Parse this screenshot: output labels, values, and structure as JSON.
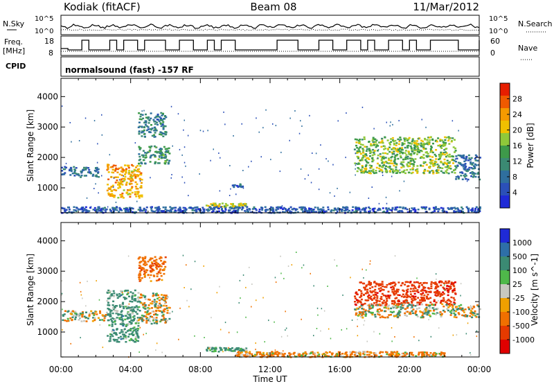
{
  "header": {
    "station": "Kodiak (fitACF)",
    "beam": "Beam 08",
    "date": "11/Mar/2012"
  },
  "aux_panels": {
    "nsky_label": "N.Sky",
    "nsearch_label": "N.Search",
    "freq_label_line1": "Freq.",
    "freq_label_line2": "[MHz]",
    "nave_label": "Nave",
    "cpid_label": "CPID",
    "cpid_text": "normalsound (fast) -157 RF",
    "noise_left_ticks": [
      "10^5",
      "10^0"
    ],
    "noise_right_ticks": [
      "10^5",
      "10^0"
    ],
    "freq_ticks": [
      "18",
      "8"
    ],
    "nave_ticks": [
      "60",
      "0"
    ]
  },
  "colors": {
    "power_scale": [
      "#1f2ad6",
      "#2b50b8",
      "#2f6f9e",
      "#3b8a73",
      "#3e9a4a",
      "#8fc83a",
      "#f0c000",
      "#f59a00",
      "#ef5a00",
      "#e61e00"
    ],
    "velocity_scale": [
      "#1f2ad6",
      "#2e6fa8",
      "#3b8a73",
      "#4fb84a",
      "#c8c8c0",
      "#f0a000",
      "#f07000",
      "#e63a00",
      "#e00000"
    ]
  },
  "chart_data": [
    {
      "type": "heatmap",
      "name": "power",
      "xlabel": "Time UT",
      "ylabel": "Slant Range [km]",
      "x_ticks": [
        "00:00",
        "04:00",
        "08:00",
        "12:00",
        "16:00",
        "20:00",
        "00:00"
      ],
      "y_ticks": [
        1000,
        2000,
        3000,
        4000
      ],
      "xlim_hours": [
        0,
        24
      ],
      "ylim_km": [
        180,
        4600
      ],
      "colorbar_label": "Power [dB]",
      "colorbar_ticks": [
        "4",
        "8",
        "12",
        "16",
        "20",
        "24",
        "28"
      ],
      "regions": [
        {
          "t0": 0.0,
          "t1": 2.2,
          "r0": 1380,
          "r1": 1720,
          "value_db": 8
        },
        {
          "t0": 2.6,
          "t1": 4.6,
          "r0": 700,
          "r1": 1800,
          "value_db": 22
        },
        {
          "t0": 4.4,
          "t1": 6.2,
          "r0": 1800,
          "r1": 2400,
          "value_db": 12
        },
        {
          "t0": 4.4,
          "t1": 6.0,
          "r0": 2700,
          "r1": 3500,
          "value_db": 10
        },
        {
          "t0": 8.3,
          "t1": 10.6,
          "r0": 380,
          "r1": 520,
          "value_db": 18
        },
        {
          "t0": 9.8,
          "t1": 10.4,
          "r0": 1050,
          "r1": 1150,
          "value_db": 6
        },
        {
          "t0": 16.8,
          "t1": 22.6,
          "r0": 1500,
          "r1": 2700,
          "value_db": 16
        },
        {
          "t0": 22.6,
          "t1": 24.0,
          "r0": 1300,
          "r1": 2100,
          "value_db": 8
        },
        {
          "t0": 0.0,
          "t1": 24.0,
          "r0": 200,
          "r1": 400,
          "value_db": 6
        }
      ]
    },
    {
      "type": "heatmap",
      "name": "velocity",
      "xlabel": "Time UT",
      "ylabel": "Slant Range [km]",
      "x_ticks": [
        "00:00",
        "04:00",
        "08:00",
        "12:00",
        "16:00",
        "20:00",
        "00:00"
      ],
      "y_ticks": [
        1000,
        2000,
        3000,
        4000
      ],
      "xlim_hours": [
        0,
        24
      ],
      "ylim_km": [
        180,
        4600
      ],
      "colorbar_label": "Velocity [m s^-1]",
      "colorbar_ticks": [
        "1000",
        "500",
        "100",
        "25",
        "-25",
        "-100",
        "-500",
        "-1000"
      ],
      "regions": [
        {
          "t0": 0.0,
          "t1": 2.6,
          "r0": 1380,
          "r1": 1720,
          "value_ms": 0
        },
        {
          "t0": 2.6,
          "t1": 4.4,
          "r0": 700,
          "r1": 2400,
          "value_ms": 150
        },
        {
          "t0": 4.4,
          "t1": 6.2,
          "r0": 1300,
          "r1": 2300,
          "value_ms": 0
        },
        {
          "t0": 4.4,
          "t1": 6.0,
          "r0": 2700,
          "r1": 3500,
          "value_ms": -200
        },
        {
          "t0": 8.3,
          "t1": 10.6,
          "r0": 380,
          "r1": 520,
          "value_ms": 150
        },
        {
          "t0": 16.8,
          "t1": 22.6,
          "r0": 1900,
          "r1": 2700,
          "value_ms": -600
        },
        {
          "t0": 16.8,
          "t1": 24.0,
          "r0": 1500,
          "r1": 1950,
          "value_ms": 0
        },
        {
          "t0": 10.0,
          "t1": 22.0,
          "r0": 200,
          "r1": 380,
          "value_ms": -100
        }
      ]
    }
  ]
}
